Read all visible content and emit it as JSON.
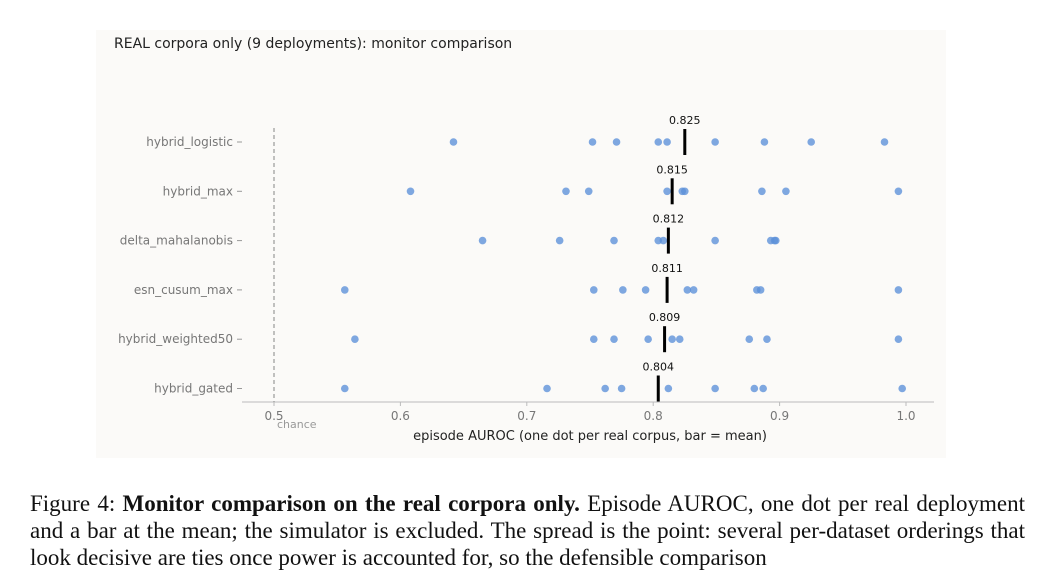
{
  "chart_data": {
    "type": "scatter",
    "title": "REAL corpora only (9 deployments): monitor comparison",
    "xlabel": "episode AUROC (one dot per real corpus, bar = mean)",
    "ylabel": "",
    "xlim": [
      0.5,
      1.0
    ],
    "xticks": [
      "0.5",
      "0.6",
      "0.7",
      "0.8",
      "0.9",
      "1.0"
    ],
    "reference_line": {
      "x": 0.5,
      "label": "chance",
      "style": "dashed"
    },
    "grid": false,
    "legend": "none",
    "dot_color": "#5b8fd8",
    "bar_color": "#000000",
    "series": [
      {
        "name": "hybrid_logistic",
        "mean": 0.825,
        "mean_label": "0.825",
        "values": [
          0.642,
          0.752,
          0.771,
          0.804,
          0.811,
          0.849,
          0.888,
          0.925,
          0.983
        ]
      },
      {
        "name": "hybrid_max",
        "mean": 0.815,
        "mean_label": "0.815",
        "values": [
          0.608,
          0.731,
          0.749,
          0.811,
          0.823,
          0.825,
          0.886,
          0.905,
          0.994
        ]
      },
      {
        "name": "delta_mahalanobis",
        "mean": 0.812,
        "mean_label": "0.812",
        "values": [
          0.665,
          0.726,
          0.769,
          0.804,
          0.808,
          0.849,
          0.893,
          0.896,
          0.897
        ]
      },
      {
        "name": "esn_cusum_max",
        "mean": 0.811,
        "mean_label": "0.811",
        "values": [
          0.556,
          0.753,
          0.776,
          0.794,
          0.827,
          0.832,
          0.882,
          0.885,
          0.994
        ]
      },
      {
        "name": "hybrid_weighted50",
        "mean": 0.809,
        "mean_label": "0.809",
        "values": [
          0.564,
          0.753,
          0.769,
          0.796,
          0.815,
          0.821,
          0.876,
          0.89,
          0.994
        ]
      },
      {
        "name": "hybrid_gated",
        "mean": 0.804,
        "mean_label": "0.804",
        "values": [
          0.556,
          0.716,
          0.762,
          0.775,
          0.812,
          0.849,
          0.88,
          0.887,
          0.997
        ]
      }
    ]
  },
  "caption": {
    "label": "Figure 4:",
    "bold": "Monitor comparison on the real corpora only.",
    "text": "Episode AUROC, one dot per real deployment and a bar at the mean; the simulator is excluded. The spread is the point: several per-dataset orderings that look decisive are ties once power is accounted for, so the defensible comparison"
  }
}
